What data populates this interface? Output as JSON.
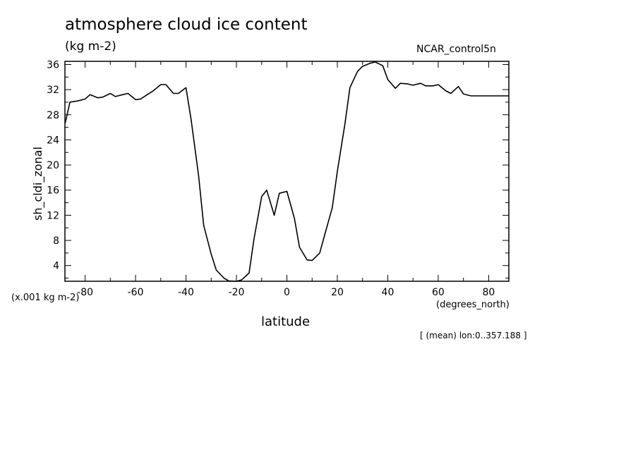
{
  "chart_data": {
    "type": "line",
    "title": "atmosphere cloud ice content",
    "units_label": "(kg m-2)",
    "dataset_label": "NCAR_control5n",
    "ylabel": "sh_cldi_zonal",
    "y_scale_note": "(x.001 kg m-2)",
    "xlabel": "latitude",
    "x_units_note": "(degrees_north)",
    "subtitle": "[ (mean) lon:0..357.188 ]",
    "xlim": [
      -88,
      88
    ],
    "ylim": [
      1.5,
      36.5
    ],
    "xticks": [
      -80,
      -60,
      -40,
      -20,
      0,
      20,
      40,
      60,
      80
    ],
    "yticks": [
      4,
      8,
      12,
      16,
      20,
      24,
      28,
      32,
      36
    ],
    "grid": false,
    "series": [
      {
        "x": [
          -87.9,
          -86,
          -83,
          -80,
          -78,
          -75,
          -73,
          -70,
          -68,
          -65,
          -63,
          -60,
          -58,
          -55,
          -53,
          -50,
          -48,
          -45,
          -43,
          -40,
          -38,
          -35,
          -33,
          -30,
          -28,
          -25,
          -23,
          -20,
          -18,
          -15,
          -13,
          -10,
          -8,
          -5,
          -3,
          0,
          3,
          5,
          8,
          10,
          13,
          15,
          18,
          20,
          23,
          25,
          28,
          30,
          33,
          35,
          38,
          40,
          43,
          45,
          48,
          50,
          53,
          55,
          58,
          60,
          63,
          65,
          68,
          70,
          73,
          75,
          78,
          80,
          83,
          85,
          87.9
        ],
        "y": [
          26.7,
          30.0,
          30.2,
          30.5,
          31.2,
          30.7,
          30.8,
          31.4,
          30.9,
          31.2,
          31.4,
          30.4,
          30.5,
          31.3,
          31.8,
          32.8,
          32.8,
          31.4,
          31.4,
          32.3,
          27.3,
          18.3,
          10.4,
          5.8,
          3.3,
          2.0,
          1.55,
          1.5,
          1.7,
          2.8,
          8.3,
          15.0,
          16.0,
          12.0,
          15.5,
          15.8,
          11.5,
          6.9,
          4.9,
          4.8,
          6.0,
          8.9,
          13.2,
          19.0,
          26.5,
          32.3,
          34.9,
          35.7,
          36.2,
          36.4,
          35.8,
          33.6,
          32.2,
          33.0,
          32.9,
          32.7,
          33.0,
          32.6,
          32.6,
          32.8,
          31.8,
          31.4,
          32.5,
          31.3,
          31.0,
          31.0,
          31.0,
          31.0,
          31.0,
          31.0,
          31.0
        ]
      }
    ]
  }
}
